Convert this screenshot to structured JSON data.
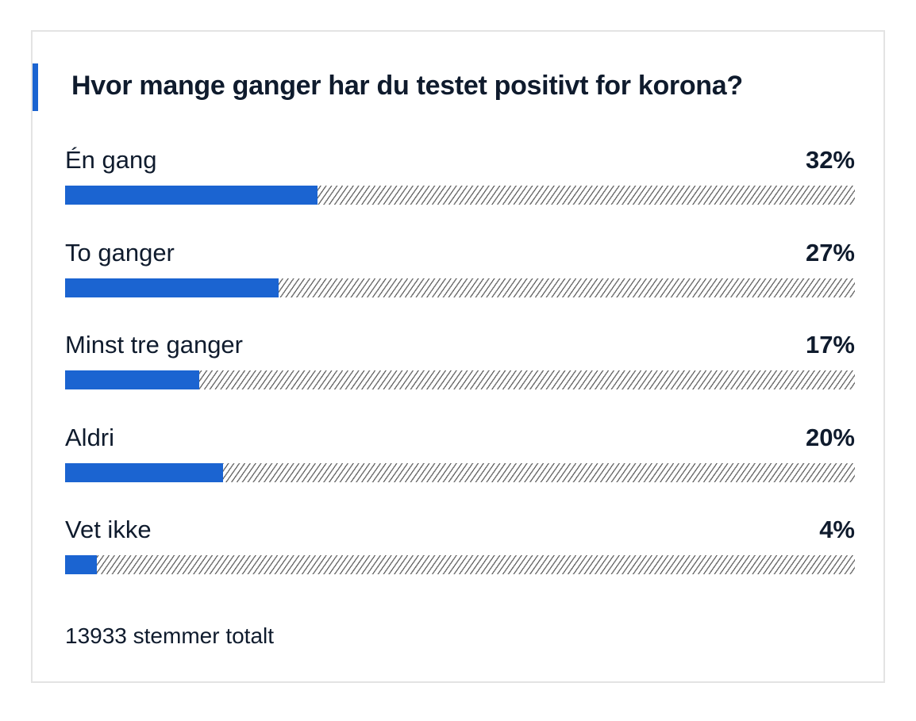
{
  "poll": {
    "title": "Hvor mange ganger har du testet positivt for korona?",
    "total_label": "13933 stemmer totalt",
    "options": [
      {
        "label": "Én gang",
        "percent_label": "32%",
        "value": 32
      },
      {
        "label": "To ganger",
        "percent_label": "27%",
        "value": 27
      },
      {
        "label": "Minst tre ganger",
        "percent_label": "17%",
        "value": 17
      },
      {
        "label": "Aldri",
        "percent_label": "20%",
        "value": 20
      },
      {
        "label": "Vet ikke",
        "percent_label": "4%",
        "value": 4
      }
    ]
  },
  "colors": {
    "accent": "#1b64d1",
    "text": "#0f1b2d",
    "border": "#e3e3e3",
    "hatch": "#6d6d6d"
  }
}
